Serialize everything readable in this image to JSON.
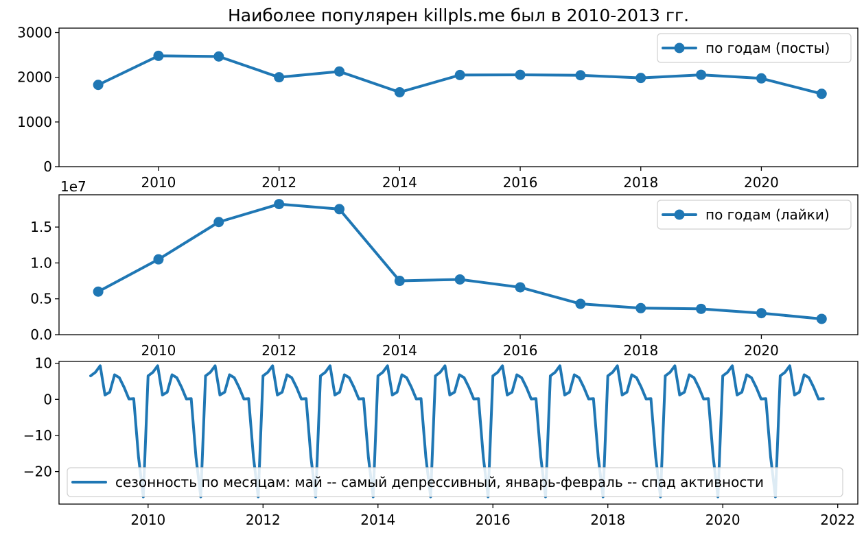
{
  "chart_data": [
    {
      "type": "line",
      "title": "Наиболее популярен killpls.me был в 2010-2013 гг.",
      "x": [
        2009,
        2010,
        2011,
        2012,
        2013,
        2014,
        2015,
        2016,
        2017,
        2018,
        2019,
        2020,
        2021
      ],
      "series": [
        {
          "name": "по годам (посты)",
          "values": [
            1830,
            2480,
            2465,
            2000,
            2130,
            1665,
            2050,
            2055,
            2045,
            1985,
            2055,
            1975,
            1630
          ],
          "marker": "circle"
        }
      ],
      "xticks": [
        "2010",
        "2012",
        "2014",
        "2016",
        "2018",
        "2020"
      ],
      "yticks": [
        "0",
        "1000",
        "2000",
        "3000"
      ],
      "xlim": [
        2008.35,
        2021.6
      ],
      "ylim": [
        0,
        3100
      ],
      "legend": "top-right",
      "grid": false,
      "color": "#1f77b4"
    },
    {
      "type": "line",
      "x": [
        2009,
        2010,
        2011,
        2012,
        2013,
        2014,
        2015,
        2016,
        2017,
        2018,
        2019,
        2020,
        2021
      ],
      "series": [
        {
          "name": "по годам (лайки)",
          "values": [
            0.6,
            1.05,
            1.57,
            1.82,
            1.75,
            0.75,
            0.77,
            0.66,
            0.43,
            0.37,
            0.36,
            0.3,
            0.22
          ],
          "marker": "circle"
        }
      ],
      "xticks": [
        "2010",
        "2012",
        "2014",
        "2016",
        "2018",
        "2020"
      ],
      "yticks": [
        "0.0",
        "0.5",
        "1.0",
        "1.5"
      ],
      "offset_label": "1e7",
      "xlim": [
        2008.35,
        2021.6
      ],
      "ylim": [
        0,
        1.95
      ],
      "legend": "top-right",
      "grid": false,
      "color": "#1f77b4"
    },
    {
      "type": "line",
      "x_start": 2009.0,
      "x_step": 0.08333,
      "series": [
        {
          "name": "сезонность по месяцам: май -- самый депрессивный, январь-февраль -- спад активности",
          "pattern": [
            6.5,
            7.5,
            9.3,
            1.2,
            2.0,
            6.8,
            6.0,
            3.3,
            0.1,
            0.2,
            -16.0,
            -27.0
          ],
          "repeat_years": 13,
          "months_total": 154
        }
      ],
      "xticks": [
        "2010",
        "2012",
        "2014",
        "2016",
        "2018",
        "2020",
        "2022"
      ],
      "yticks": [
        "10",
        "0",
        "−10",
        "−20"
      ],
      "xlim": [
        2008.45,
        2022.35
      ],
      "ylim": [
        -29,
        10.5
      ],
      "legend": "lower-center",
      "grid": false,
      "color": "#1f77b4"
    }
  ]
}
